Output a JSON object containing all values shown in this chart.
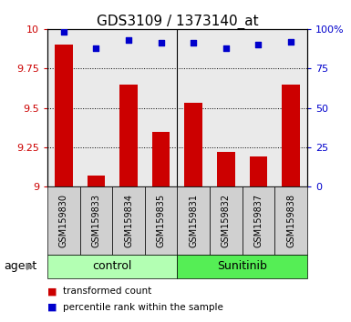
{
  "title": "GDS3109 / 1373140_at",
  "samples": [
    "GSM159830",
    "GSM159833",
    "GSM159834",
    "GSM159835",
    "GSM159831",
    "GSM159832",
    "GSM159837",
    "GSM159838"
  ],
  "groups": [
    "control",
    "control",
    "control",
    "control",
    "Sunitinib",
    "Sunitinib",
    "Sunitinib",
    "Sunitinib"
  ],
  "bar_values": [
    9.9,
    9.07,
    9.65,
    9.35,
    9.53,
    9.22,
    9.19,
    9.65
  ],
  "dot_values": [
    98,
    88,
    93,
    91,
    91,
    88,
    90,
    92
  ],
  "bar_color": "#cc0000",
  "dot_color": "#0000cc",
  "ylim_left": [
    9.0,
    10.0
  ],
  "ylim_right": [
    0,
    100
  ],
  "yticks_left": [
    9.0,
    9.25,
    9.5,
    9.75,
    10.0
  ],
  "yticks_right": [
    0,
    25,
    50,
    75,
    100
  ],
  "ytick_labels_left": [
    "9",
    "9.25",
    "9.5",
    "9.75",
    "10"
  ],
  "ytick_labels_right": [
    "0",
    "25",
    "50",
    "75",
    "100%"
  ],
  "group_colors_control": "#b3ffb3",
  "group_colors_sunitinib": "#55ee55",
  "control_label": "control",
  "sunitinib_label": "Sunitinib",
  "agent_label": "agent",
  "legend_bar_label": "transformed count",
  "legend_dot_label": "percentile rank within the sample",
  "separator_col": 4,
  "title_fontsize": 11,
  "tick_label_fontsize": 8,
  "sample_fontsize": 7,
  "group_fontsize": 9
}
